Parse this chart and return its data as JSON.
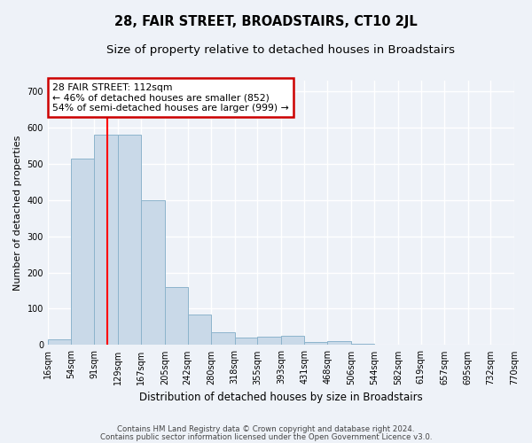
{
  "title": "28, FAIR STREET, BROADSTAIRS, CT10 2JL",
  "subtitle": "Size of property relative to detached houses in Broadstairs",
  "xlabel": "Distribution of detached houses by size in Broadstairs",
  "ylabel": "Number of detached properties",
  "bin_edges": [
    16,
    54,
    91,
    129,
    167,
    205,
    242,
    280,
    318,
    355,
    393,
    431,
    468,
    506,
    544,
    582,
    619,
    657,
    695,
    732,
    770
  ],
  "bar_heights": [
    15,
    515,
    580,
    580,
    400,
    160,
    83,
    35,
    20,
    22,
    25,
    8,
    12,
    3,
    0,
    0,
    0,
    0,
    0,
    0
  ],
  "bar_color": "#c9d9e8",
  "bar_edge_color": "#8db4cc",
  "red_line_x": 112,
  "ylim": [
    0,
    730
  ],
  "yticks": [
    0,
    100,
    200,
    300,
    400,
    500,
    600,
    700
  ],
  "annotation_text": "28 FAIR STREET: 112sqm\n← 46% of detached houses are smaller (852)\n54% of semi-detached houses are larger (999) →",
  "annotation_box_color": "#ffffff",
  "annotation_box_edge": "#cc0000",
  "footer_line1": "Contains HM Land Registry data © Crown copyright and database right 2024.",
  "footer_line2": "Contains public sector information licensed under the Open Government Licence v3.0.",
  "background_color": "#eef2f8",
  "grid_color": "#ffffff",
  "title_fontsize": 10.5,
  "subtitle_fontsize": 9.5,
  "tick_fontsize": 7,
  "ylabel_fontsize": 8,
  "xlabel_fontsize": 8.5
}
